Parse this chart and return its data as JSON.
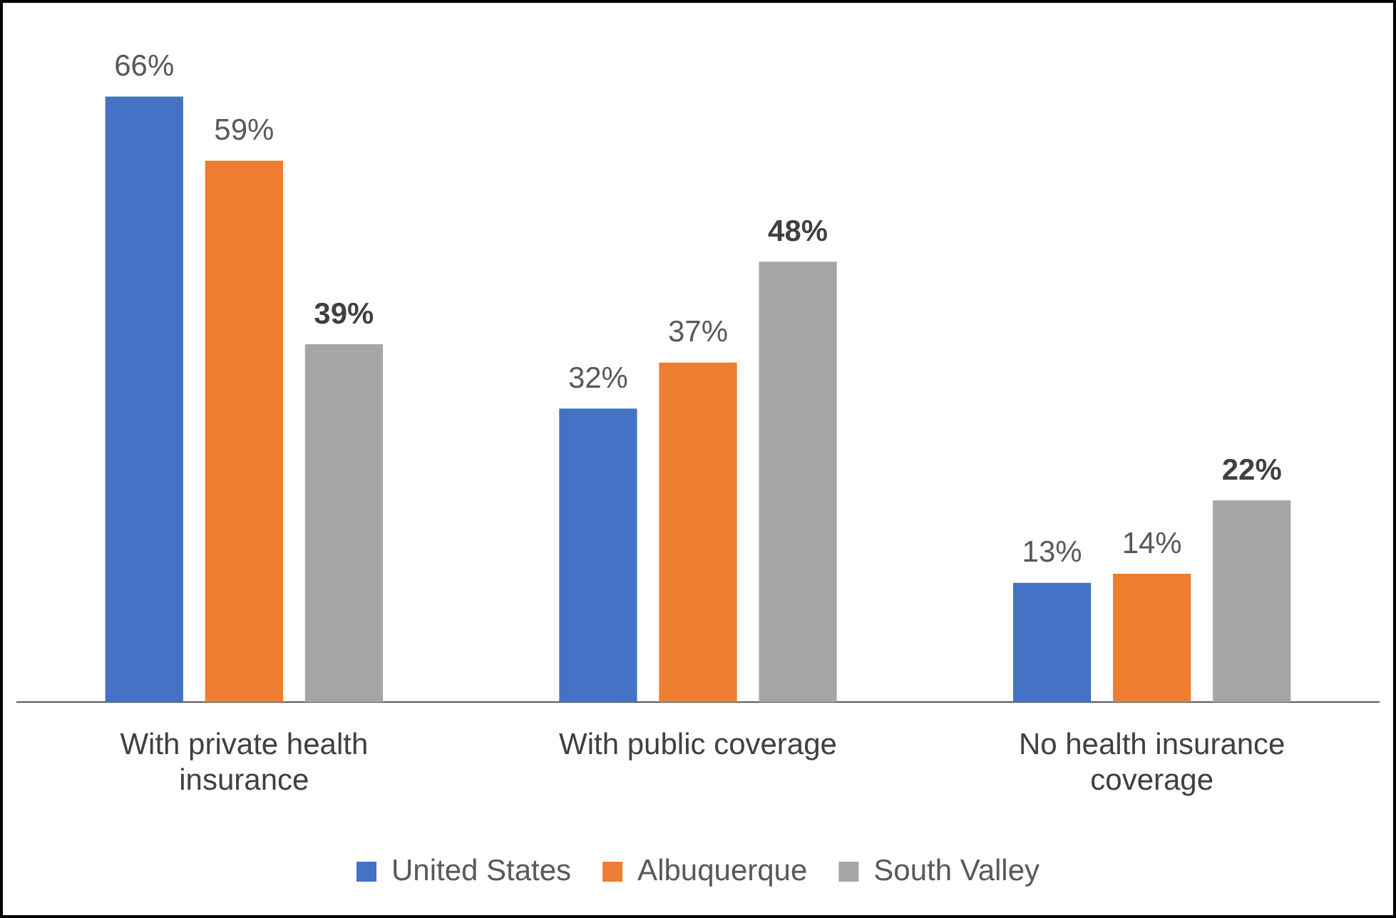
{
  "chart_data": {
    "type": "bar",
    "categories": [
      "With private health insurance",
      "With public coverage",
      "No health insurance coverage"
    ],
    "series": [
      {
        "name": "United States",
        "color": "#4472c4",
        "values": [
          66,
          32,
          13
        ],
        "value_labels": [
          "66%",
          "32%",
          "13%"
        ]
      },
      {
        "name": "Albuquerque",
        "color": "#ed7d31",
        "values": [
          59,
          37,
          14
        ],
        "value_labels": [
          "59%",
          "37%",
          "14%"
        ]
      },
      {
        "name": "South Valley",
        "color": "#a5a5a5",
        "values": [
          39,
          48,
          22
        ],
        "value_labels": [
          "39%",
          "48%",
          "22%"
        ]
      }
    ],
    "legend": "bottom",
    "grid": false
  }
}
